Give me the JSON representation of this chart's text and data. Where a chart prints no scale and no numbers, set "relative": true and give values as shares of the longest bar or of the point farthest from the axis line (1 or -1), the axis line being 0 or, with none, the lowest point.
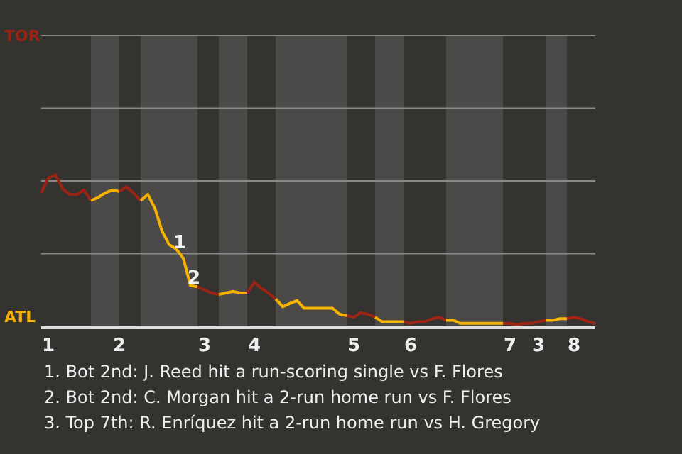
{
  "chart_data": {
    "type": "line",
    "relative": true,
    "categories": [
      null,
      "1",
      null,
      null,
      null,
      null,
      null,
      null,
      null,
      null,
      null,
      "2",
      null,
      null,
      null,
      null,
      null,
      null,
      null,
      null,
      null,
      null,
      null,
      "3",
      null,
      null,
      null,
      null,
      null,
      null,
      "4",
      null,
      null,
      null,
      null,
      null,
      null,
      null,
      null,
      null,
      null,
      null,
      null,
      null,
      "5",
      null,
      null,
      null,
      null,
      null,
      null,
      null,
      "6",
      null,
      null,
      null,
      null,
      null,
      null,
      null,
      null,
      null,
      null,
      null,
      null,
      null,
      "7",
      null,
      null,
      null,
      "3",
      null,
      null,
      null,
      null,
      "8",
      null,
      null,
      null
    ],
    "marker": "none",
    "line_style": "solid",
    "ref_lines": [
      {
        "axis": "y",
        "value": 0.48,
        "color": "#8a8987"
      },
      {
        "axis": "y",
        "value": 0.96,
        "color": "#8a8987"
      },
      {
        "axis": "y",
        "value": 1.44,
        "color": "#8a8987"
      },
      {
        "axis": "y",
        "value": 1.92,
        "color": "#8a8987"
      }
    ],
    "series": [
      {
        "color": "#9a2414",
        "values": [
          0.88,
          0.98,
          1,
          0.91,
          0.87,
          0.87,
          0.9,
          0.83,
          null,
          null,
          null,
          null,
          null,
          null,
          null,
          null,
          null,
          null,
          null,
          null,
          null,
          null,
          null,
          null,
          null,
          null,
          null,
          null,
          null,
          null,
          null,
          null,
          null,
          null,
          null,
          null,
          null,
          null,
          null,
          null,
          null,
          null,
          null,
          null,
          null,
          null,
          null,
          null,
          null,
          null,
          null,
          null,
          null,
          null,
          null,
          null,
          null,
          null,
          null,
          null,
          null,
          null,
          null,
          null,
          null,
          null,
          null,
          null,
          null,
          null,
          null,
          null,
          null,
          null,
          null,
          null,
          null,
          null,
          null
        ]
      },
      {
        "color": "#f5b100",
        "values": [
          null,
          null,
          null,
          null,
          null,
          null,
          null,
          0.83,
          0.85,
          0.88,
          0.9,
          0.89,
          null,
          null,
          null,
          null,
          null,
          null,
          null,
          null,
          null,
          null,
          null,
          null,
          null,
          null,
          null,
          null,
          null,
          null,
          null,
          null,
          null,
          null,
          null,
          null,
          null,
          null,
          null,
          null,
          null,
          null,
          null,
          null,
          null,
          null,
          null,
          null,
          null,
          null,
          null,
          null,
          null,
          null,
          null,
          null,
          null,
          null,
          null,
          null,
          null,
          null,
          null,
          null,
          null,
          null,
          null,
          null,
          null,
          null,
          null,
          null,
          null,
          null,
          null,
          null,
          null,
          null,
          null
        ]
      },
      {
        "color": "#9b2414",
        "values": [
          null,
          null,
          null,
          null,
          null,
          null,
          null,
          null,
          null,
          null,
          null,
          0.89,
          0.92,
          0.88,
          0.83,
          null,
          null,
          null,
          null,
          null,
          null,
          null,
          null,
          null,
          null,
          null,
          null,
          null,
          null,
          null,
          null,
          null,
          null,
          null,
          null,
          null,
          null,
          null,
          null,
          null,
          null,
          null,
          null,
          null,
          null,
          null,
          null,
          null,
          null,
          null,
          null,
          null,
          null,
          null,
          null,
          null,
          null,
          null,
          null,
          null,
          null,
          null,
          null,
          null,
          null,
          null,
          null,
          null,
          null,
          null,
          null,
          null,
          null,
          null,
          null,
          null,
          null,
          null,
          null
        ]
      },
      {
        "color": "#f5b200",
        "values": [
          null,
          null,
          null,
          null,
          null,
          null,
          null,
          null,
          null,
          null,
          null,
          null,
          null,
          null,
          0.83,
          0.87,
          0.78,
          0.63,
          0.54,
          0.51,
          0.45,
          0.27,
          0.26,
          null,
          null,
          null,
          null,
          null,
          null,
          null,
          null,
          null,
          null,
          null,
          null,
          null,
          null,
          null,
          null,
          null,
          null,
          null,
          null,
          null,
          null,
          null,
          null,
          null,
          null,
          null,
          null,
          null,
          null,
          null,
          null,
          null,
          null,
          null,
          null,
          null,
          null,
          null,
          null,
          null,
          null,
          null,
          null,
          null,
          null,
          null,
          null,
          null,
          null,
          null,
          null,
          null,
          null,
          null,
          null
        ]
      },
      {
        "color": "#9c2414",
        "values": [
          null,
          null,
          null,
          null,
          null,
          null,
          null,
          null,
          null,
          null,
          null,
          null,
          null,
          null,
          null,
          null,
          null,
          null,
          null,
          null,
          null,
          null,
          0.26,
          0.24,
          0.22,
          0.21,
          null,
          null,
          null,
          null,
          null,
          null,
          null,
          null,
          null,
          null,
          null,
          null,
          null,
          null,
          null,
          null,
          null,
          null,
          null,
          null,
          null,
          null,
          null,
          null,
          null,
          null,
          null,
          null,
          null,
          null,
          null,
          null,
          null,
          null,
          null,
          null,
          null,
          null,
          null,
          null,
          null,
          null,
          null,
          null,
          null,
          null,
          null,
          null,
          null,
          null,
          null,
          null,
          null
        ]
      },
      {
        "color": "#f5b300",
        "values": [
          null,
          null,
          null,
          null,
          null,
          null,
          null,
          null,
          null,
          null,
          null,
          null,
          null,
          null,
          null,
          null,
          null,
          null,
          null,
          null,
          null,
          null,
          null,
          null,
          null,
          0.21,
          0.22,
          0.23,
          0.22,
          0.22,
          null,
          null,
          null,
          null,
          null,
          null,
          null,
          null,
          null,
          null,
          null,
          null,
          null,
          null,
          null,
          null,
          null,
          null,
          null,
          null,
          null,
          null,
          null,
          null,
          null,
          null,
          null,
          null,
          null,
          null,
          null,
          null,
          null,
          null,
          null,
          null,
          null,
          null,
          null,
          null,
          null,
          null,
          null,
          null,
          null,
          null,
          null,
          null,
          null
        ]
      },
      {
        "color": "#9d2414",
        "values": [
          null,
          null,
          null,
          null,
          null,
          null,
          null,
          null,
          null,
          null,
          null,
          null,
          null,
          null,
          null,
          null,
          null,
          null,
          null,
          null,
          null,
          null,
          null,
          null,
          null,
          null,
          null,
          null,
          null,
          0.22,
          0.29,
          0.25,
          0.22,
          0.18,
          null,
          null,
          null,
          null,
          null,
          null,
          null,
          null,
          null,
          null,
          null,
          null,
          null,
          null,
          null,
          null,
          null,
          null,
          null,
          null,
          null,
          null,
          null,
          null,
          null,
          null,
          null,
          null,
          null,
          null,
          null,
          null,
          null,
          null,
          null,
          null,
          null,
          null,
          null,
          null,
          null,
          null,
          null,
          null,
          null
        ]
      },
      {
        "color": "#f5b400",
        "values": [
          null,
          null,
          null,
          null,
          null,
          null,
          null,
          null,
          null,
          null,
          null,
          null,
          null,
          null,
          null,
          null,
          null,
          null,
          null,
          null,
          null,
          null,
          null,
          null,
          null,
          null,
          null,
          null,
          null,
          null,
          null,
          null,
          null,
          0.18,
          0.13,
          0.15,
          0.17,
          0.12,
          0.12,
          0.12,
          0.12,
          0.12,
          0.08,
          0.07,
          null,
          null,
          null,
          null,
          null,
          null,
          null,
          null,
          null,
          null,
          null,
          null,
          null,
          null,
          null,
          null,
          null,
          null,
          null,
          null,
          null,
          null,
          null,
          null,
          null,
          null,
          null,
          null,
          null,
          null,
          null,
          null,
          null,
          null,
          null
        ]
      },
      {
        "color": "#9e2414",
        "values": [
          null,
          null,
          null,
          null,
          null,
          null,
          null,
          null,
          null,
          null,
          null,
          null,
          null,
          null,
          null,
          null,
          null,
          null,
          null,
          null,
          null,
          null,
          null,
          null,
          null,
          null,
          null,
          null,
          null,
          null,
          null,
          null,
          null,
          null,
          null,
          null,
          null,
          null,
          null,
          null,
          null,
          null,
          null,
          0.07,
          0.06,
          0.09,
          0.08,
          0.06,
          null,
          null,
          null,
          null,
          null,
          null,
          null,
          null,
          null,
          null,
          null,
          null,
          null,
          null,
          null,
          null,
          null,
          null,
          null,
          null,
          null,
          null,
          null,
          null,
          null,
          null,
          null,
          null,
          null,
          null,
          null
        ]
      },
      {
        "color": "#f5b500",
        "values": [
          null,
          null,
          null,
          null,
          null,
          null,
          null,
          null,
          null,
          null,
          null,
          null,
          null,
          null,
          null,
          null,
          null,
          null,
          null,
          null,
          null,
          null,
          null,
          null,
          null,
          null,
          null,
          null,
          null,
          null,
          null,
          null,
          null,
          null,
          null,
          null,
          null,
          null,
          null,
          null,
          null,
          null,
          null,
          null,
          null,
          null,
          null,
          0.06,
          0.03,
          0.03,
          0.03,
          0.03,
          null,
          null,
          null,
          null,
          null,
          null,
          null,
          null,
          null,
          null,
          null,
          null,
          null,
          null,
          null,
          null,
          null,
          null,
          null,
          null,
          null,
          null,
          null,
          null,
          null,
          null,
          null
        ]
      },
      {
        "color": "#9f2414",
        "values": [
          null,
          null,
          null,
          null,
          null,
          null,
          null,
          null,
          null,
          null,
          null,
          null,
          null,
          null,
          null,
          null,
          null,
          null,
          null,
          null,
          null,
          null,
          null,
          null,
          null,
          null,
          null,
          null,
          null,
          null,
          null,
          null,
          null,
          null,
          null,
          null,
          null,
          null,
          null,
          null,
          null,
          null,
          null,
          null,
          null,
          null,
          null,
          null,
          null,
          null,
          null,
          0.03,
          0.02,
          0.03,
          0.03,
          0.05,
          0.06,
          0.04,
          null,
          null,
          null,
          null,
          null,
          null,
          null,
          null,
          null,
          null,
          null,
          null,
          null,
          null,
          null,
          null,
          null,
          null,
          null,
          null,
          null
        ]
      },
      {
        "color": "#f5b600",
        "values": [
          null,
          null,
          null,
          null,
          null,
          null,
          null,
          null,
          null,
          null,
          null,
          null,
          null,
          null,
          null,
          null,
          null,
          null,
          null,
          null,
          null,
          null,
          null,
          null,
          null,
          null,
          null,
          null,
          null,
          null,
          null,
          null,
          null,
          null,
          null,
          null,
          null,
          null,
          null,
          null,
          null,
          null,
          null,
          null,
          null,
          null,
          null,
          null,
          null,
          null,
          null,
          null,
          null,
          null,
          null,
          null,
          null,
          0.04,
          0.04,
          0.02,
          0.02,
          0.02,
          0.02,
          0.02,
          0.02,
          0.02,
          null,
          null,
          null,
          null,
          null,
          null,
          null,
          null,
          null,
          null,
          null,
          null,
          null
        ]
      },
      {
        "color": "#a02414",
        "values": [
          null,
          null,
          null,
          null,
          null,
          null,
          null,
          null,
          null,
          null,
          null,
          null,
          null,
          null,
          null,
          null,
          null,
          null,
          null,
          null,
          null,
          null,
          null,
          null,
          null,
          null,
          null,
          null,
          null,
          null,
          null,
          null,
          null,
          null,
          null,
          null,
          null,
          null,
          null,
          null,
          null,
          null,
          null,
          null,
          null,
          null,
          null,
          null,
          null,
          null,
          null,
          null,
          null,
          null,
          null,
          null,
          null,
          null,
          null,
          null,
          null,
          null,
          null,
          null,
          null,
          0.02,
          0.02,
          0.01,
          0.02,
          0.02,
          0.03,
          0.04,
          null,
          null,
          null,
          null,
          null,
          null,
          null
        ]
      },
      {
        "color": "#f5b700",
        "values": [
          null,
          null,
          null,
          null,
          null,
          null,
          null,
          null,
          null,
          null,
          null,
          null,
          null,
          null,
          null,
          null,
          null,
          null,
          null,
          null,
          null,
          null,
          null,
          null,
          null,
          null,
          null,
          null,
          null,
          null,
          null,
          null,
          null,
          null,
          null,
          null,
          null,
          null,
          null,
          null,
          null,
          null,
          null,
          null,
          null,
          null,
          null,
          null,
          null,
          null,
          null,
          null,
          null,
          null,
          null,
          null,
          null,
          null,
          null,
          null,
          null,
          null,
          null,
          null,
          null,
          null,
          null,
          null,
          null,
          null,
          null,
          0.04,
          0.04,
          0.05,
          0.05,
          null,
          null,
          null,
          null
        ]
      },
      {
        "color": "#a12414",
        "values": [
          null,
          null,
          null,
          null,
          null,
          null,
          null,
          null,
          null,
          null,
          null,
          null,
          null,
          null,
          null,
          null,
          null,
          null,
          null,
          null,
          null,
          null,
          null,
          null,
          null,
          null,
          null,
          null,
          null,
          null,
          null,
          null,
          null,
          null,
          null,
          null,
          null,
          null,
          null,
          null,
          null,
          null,
          null,
          null,
          null,
          null,
          null,
          null,
          null,
          null,
          null,
          null,
          null,
          null,
          null,
          null,
          null,
          null,
          null,
          null,
          null,
          null,
          null,
          null,
          null,
          null,
          null,
          null,
          null,
          null,
          null,
          null,
          null,
          null,
          0.05,
          0.06,
          0.05,
          0.03,
          0.02
        ]
      }
    ],
    "annotations": [
      "TOR",
      "ATL",
      "1",
      "2",
      "1. Bot 2nd: J. Reed hit a run-scoring single vs F. Flores",
      "2. Bot 2nd: C. Morgan hit a 2-run home run vs F. Flores",
      "3. Top 7th: R. Enríquez hit a 2-run home run vs H. Gregory"
    ]
  }
}
